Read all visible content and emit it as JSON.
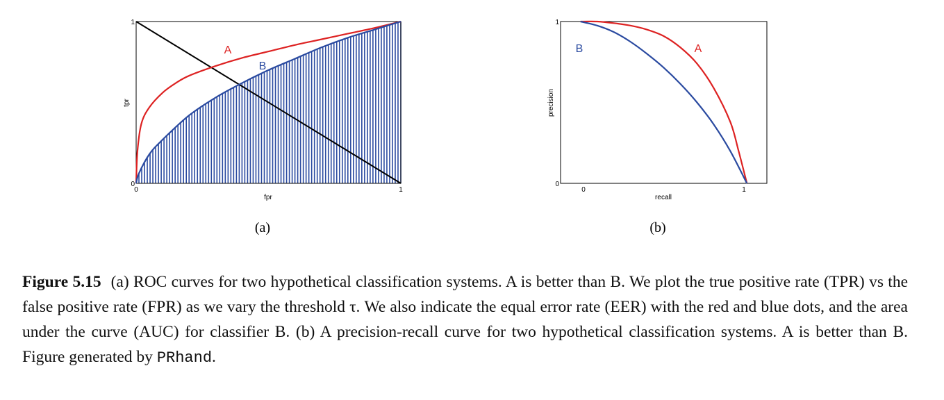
{
  "panels": [
    {
      "sublabel": "(a)",
      "xlabel": "fpr",
      "ylabel": "tpr",
      "x_ticks": [
        "0",
        "1"
      ],
      "y_ticks": [
        "0",
        "1"
      ],
      "curve_labels": [
        "A",
        "B"
      ]
    },
    {
      "sublabel": "(b)",
      "xlabel": "recall",
      "ylabel": "precision",
      "x_ticks": [
        "0",
        "1"
      ],
      "y_ticks": [
        "0",
        "1"
      ],
      "curve_labels": [
        "B",
        "A"
      ]
    }
  ],
  "caption": {
    "figure_number": "Figure 5.15",
    "text": "(a) ROC curves for two hypothetical classification systems. A is better than B. We plot the true positive rate (TPR) vs the false positive rate (FPR) as we vary the threshold τ. We also indicate the equal error rate (EER) with the red and blue dots, and the area under the curve (AUC) for classifier B. (b) A precision-recall curve for two hypothetical classification systems. A is better than B. Figure generated by",
    "code": "PRhand",
    "end": "."
  },
  "colors": {
    "A": "#dd2222",
    "B": "#2a4aa0",
    "diagonal": "#000000",
    "hatch": "#2a4aa0"
  },
  "chart_data": [
    {
      "type": "line",
      "xlabel": "fpr",
      "ylabel": "tpr",
      "xlim": [
        0,
        1
      ],
      "ylim": [
        0,
        1
      ],
      "auc_shaded_series": "B",
      "series": [
        {
          "name": "A",
          "color": "#dd2222",
          "x": [
            0,
            0.005,
            0.02,
            0.05,
            0.1,
            0.15,
            0.2,
            0.3,
            0.4,
            0.5,
            0.6,
            0.7,
            0.8,
            0.9,
            1.0
          ],
          "y": [
            0,
            0.2,
            0.37,
            0.47,
            0.56,
            0.62,
            0.665,
            0.725,
            0.775,
            0.815,
            0.855,
            0.89,
            0.925,
            0.96,
            1.0
          ]
        },
        {
          "name": "B",
          "color": "#2a4aa0",
          "x": [
            0,
            0.01,
            0.05,
            0.1,
            0.2,
            0.3,
            0.4,
            0.5,
            0.6,
            0.7,
            0.8,
            0.9,
            1.0
          ],
          "y": [
            0,
            0.06,
            0.18,
            0.27,
            0.42,
            0.53,
            0.62,
            0.7,
            0.77,
            0.84,
            0.9,
            0.95,
            1.0
          ]
        },
        {
          "x": [
            0,
            1
          ],
          "y": [
            1,
            0
          ],
          "color": "#000000"
        }
      ]
    },
    {
      "type": "line",
      "xlabel": "recall",
      "ylabel": "precision",
      "xlim": [
        -0.12,
        1.12
      ],
      "ylim": [
        0,
        1
      ],
      "series": [
        {
          "name": "A",
          "color": "#dd2222",
          "x": [
            0,
            0.1,
            0.2,
            0.3,
            0.4,
            0.5,
            0.6,
            0.7,
            0.8,
            0.9,
            0.95,
            1.0
          ],
          "y": [
            1.0,
            1.0,
            0.99,
            0.975,
            0.95,
            0.91,
            0.84,
            0.74,
            0.59,
            0.38,
            0.2,
            0.0
          ]
        },
        {
          "name": "B",
          "color": "#2a4aa0",
          "x": [
            0,
            0.1,
            0.2,
            0.3,
            0.4,
            0.5,
            0.6,
            0.7,
            0.8,
            0.9,
            1.0
          ],
          "y": [
            1.0,
            0.975,
            0.935,
            0.875,
            0.8,
            0.715,
            0.615,
            0.5,
            0.365,
            0.2,
            0.0
          ]
        }
      ]
    }
  ]
}
